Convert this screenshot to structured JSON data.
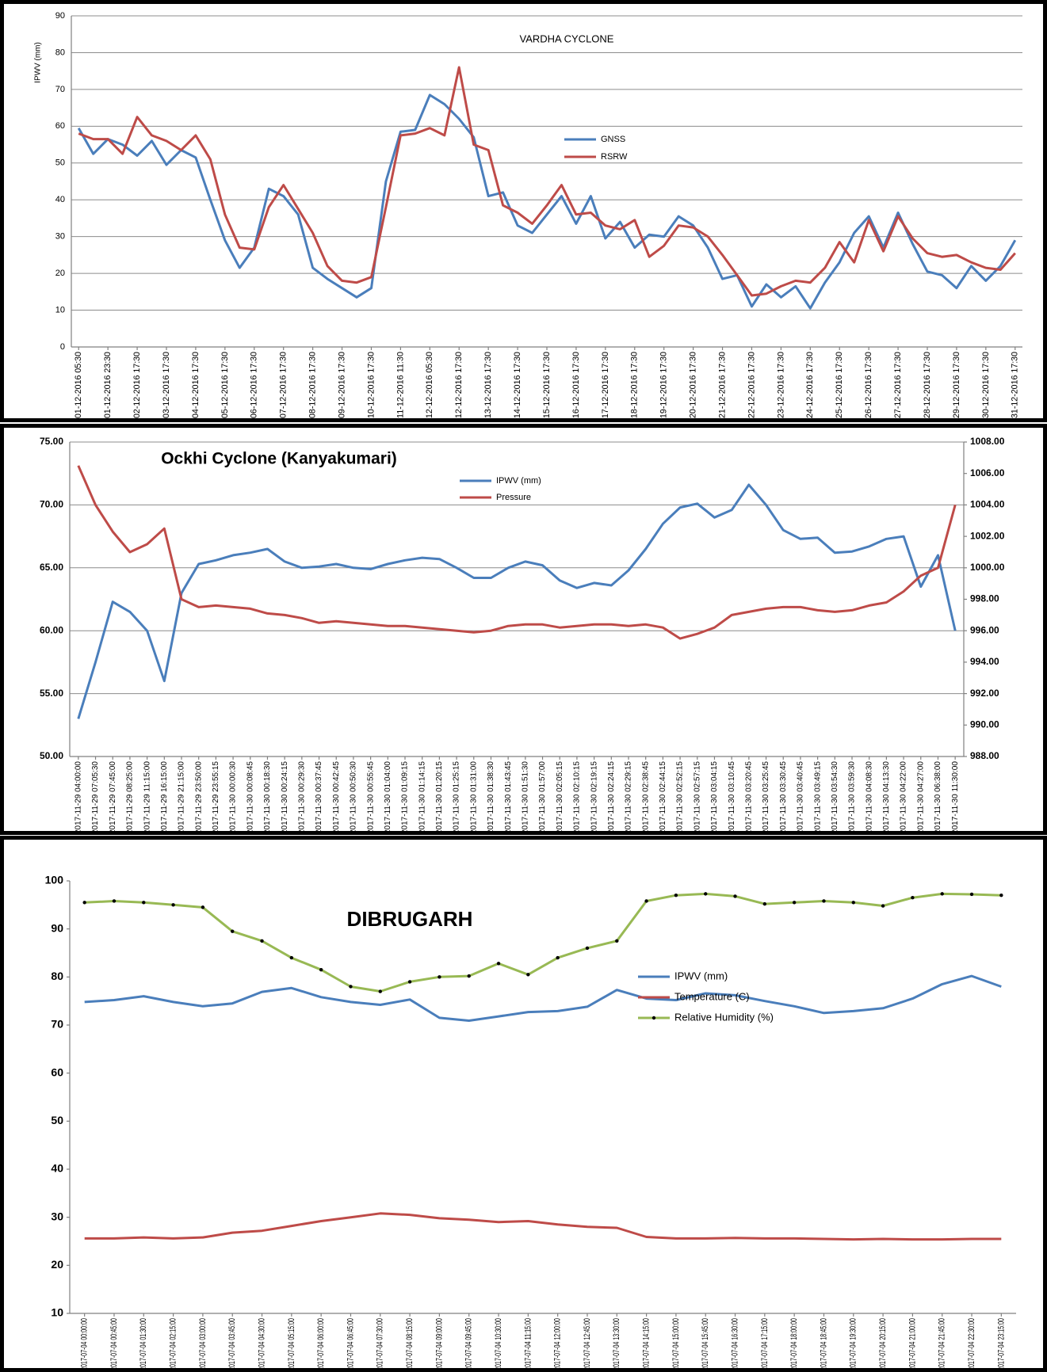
{
  "chart_data": [
    {
      "type": "line",
      "title": "VARDHA CYCLONE",
      "y_label": "IPWV (mm)",
      "categories": [
        "01-12-2016 05:30",
        null,
        "01-12-2016 23:30",
        null,
        "02-12-2016 17:30",
        null,
        "03-12-2016 17:30",
        null,
        "04-12-2016 17:30",
        null,
        "05-12-2016 17:30",
        null,
        "06-12-2016 17:30",
        null,
        "07-12-2016 17:30",
        null,
        "08-12-2016 17:30",
        null,
        "09-12-2016 17:30",
        null,
        "10-12-2016 17:30",
        null,
        "11-12-2016 11:30",
        null,
        "12-12-2016 05:30",
        null,
        "12-12-2016 17:30",
        null,
        "13-12-2016 17:30",
        null,
        "14-12-2016 17:30",
        null,
        "15-12-2016 17:30",
        null,
        "16-12-2016 17:30",
        null,
        "17-12-2016 17:30",
        null,
        "18-12-2016 17:30",
        null,
        "19-12-2016 17:30",
        null,
        "20-12-2016 17:30",
        null,
        "21-12-2016 17:30",
        null,
        "22-12-2016 17:30",
        null,
        "23-12-2016 17:30",
        null,
        "24-12-2016 17:30",
        null,
        "25-12-2016 17:30",
        null,
        "26-12-2016 17:30",
        null,
        "27-12-2016 17:30",
        null,
        "28-12-2016 17:30",
        null,
        "29-12-2016 17:30",
        null,
        "30-12-2016 17:30",
        null,
        "31-12-2016 17:30"
      ],
      "series": [
        {
          "name": "GNSS",
          "color": "#4a7ebb",
          "values": [
            59.5,
            52.5,
            56.5,
            55,
            52,
            56,
            49.5,
            53.5,
            51.5,
            40,
            29,
            21.5,
            27,
            43,
            41,
            36,
            21.5,
            18.5,
            16,
            13.5,
            16,
            45,
            58.5,
            59,
            68.5,
            66,
            62,
            57,
            41,
            42,
            33,
            31,
            36,
            41,
            33.5,
            41,
            29.5,
            34,
            27,
            30.5,
            30,
            35.5,
            33,
            27,
            18.5,
            19.5,
            11,
            17,
            13.5,
            16.5,
            10.5,
            17.5,
            23,
            31,
            35.5,
            27,
            36.5,
            28,
            20.5,
            19.5,
            16,
            22,
            18,
            22,
            29
          ]
        },
        {
          "name": "RSRW",
          "color": "#be4b48",
          "values": [
            58,
            56.5,
            56.5,
            52.5,
            62.5,
            57.5,
            56,
            53.5,
            57.5,
            51,
            36,
            27,
            26.5,
            38,
            44,
            37.5,
            31,
            22,
            18,
            17.5,
            19,
            38,
            57.5,
            58,
            59.5,
            57.5,
            76,
            55,
            53.5,
            38.5,
            36.5,
            33.5,
            38.5,
            44,
            36,
            36.5,
            33,
            32,
            34.5,
            24.5,
            27.5,
            33,
            32.5,
            30,
            25,
            19.5,
            14,
            14.5,
            16.5,
            18,
            17.5,
            21.5,
            28.5,
            23,
            34.5,
            26,
            35.5,
            29.5,
            25.5,
            24.5,
            25,
            23,
            21.5,
            21,
            25.5
          ]
        }
      ],
      "ylim": [
        0,
        90
      ],
      "yticks": [
        0,
        10,
        20,
        30,
        40,
        50,
        60,
        70,
        80,
        90
      ],
      "grid": true
    },
    {
      "type": "line",
      "title": "Ockhi Cyclone (Kanyakumari)",
      "categories": [
        "2017-11-29 04:00:00",
        "2017-11-29 07:05:30",
        "2017-11-29 07:45:00",
        "2017-11-29 08:25:00",
        "2017-11-29 11:15:00",
        "2017-11-29 16:15:00",
        "2017-11-29 21:15:00",
        "2017-11-29 23:50:00",
        "2017-11-29 23:55:15",
        "2017-11-30 00:00:30",
        "2017-11-30 00:08:45",
        "2017-11-30 00:18:30",
        "2017-11-30 00:24:15",
        "2017-11-30 00:29:30",
        "2017-11-30 00:37:45",
        "2017-11-30 00:42:45",
        "2017-11-30 00:50:30",
        "2017-11-30 00:55:45",
        "2017-11-30 01:04:00",
        "2017-11-30 01:09:15",
        "2017-11-30 01:14:15",
        "2017-11-30 01:20:15",
        "2017-11-30 01:25:15",
        "2017-11-30 01:31:00",
        "2017-11-30 01:38:30",
        "2017-11-30 01:43:45",
        "2017-11-30 01:51:30",
        "2017-11-30 01:57:00",
        "2017-11-30 02:05:15",
        "2017-11-30 02:10:15",
        "2017-11-30 02:19:15",
        "2017-11-30 02:24:15",
        "2017-11-30 02:29:15",
        "2017-11-30 02:38:45",
        "2017-11-30 02:44:15",
        "2017-11-30 02:52:15",
        "2017-11-30 02:57:15",
        "2017-11-30 03:04:15",
        "2017-11-30 03:10:45",
        "2017-11-30 03:20:45",
        "2017-11-30 03:25:45",
        "2017-11-30 03:30:45",
        "2017-11-30 03:40:45",
        "2017-11-30 03:49:15",
        "2017-11-30 03:54:30",
        "2017-11-30 03:59:30",
        "2017-11-30 04:08:30",
        "2017-11-30 04:13:30",
        "2017-11-30 04:22:00",
        "2017-11-30 04:27:00",
        "2017-11-30 06:38:00",
        "2017-11-30 11:30:00"
      ],
      "series": [
        {
          "name": "IPWV (mm)",
          "color": "#4a7ebb",
          "values": [
            53,
            57.5,
            62.3,
            61.5,
            60,
            56,
            63,
            65.3,
            65.6,
            66,
            66.2,
            66.5,
            65.5,
            65,
            65.1,
            65.3,
            65,
            64.9,
            65.3,
            65.6,
            65.8,
            65.7,
            65,
            64.2,
            64.2,
            65,
            65.5,
            65.2,
            64,
            63.4,
            63.8,
            63.6,
            64.8,
            66.5,
            68.5,
            69.8,
            70.1,
            69,
            69.6,
            71.6,
            70,
            68,
            67.3,
            67.4,
            66.2,
            66.3,
            66.7,
            67.3,
            67.5,
            63.5,
            66,
            60
          ]
        },
        {
          "name": "Pressure",
          "color": "#be4b48",
          "axis": "y2",
          "values": [
            1006.5,
            1004,
            1002.3,
            1001,
            1001.5,
            1002.5,
            998,
            997.5,
            997.6,
            997.5,
            997.4,
            997.1,
            997,
            996.8,
            996.5,
            996.6,
            996.5,
            996.4,
            996.3,
            996.3,
            996.2,
            996.1,
            996,
            995.9,
            996,
            996.3,
            996.4,
            996.4,
            996.2,
            996.3,
            996.4,
            996.4,
            996.3,
            996.4,
            996.2,
            995.5,
            995.8,
            996.2,
            997,
            997.2,
            997.4,
            997.5,
            997.5,
            997.3,
            997.2,
            997.3,
            997.6,
            997.8,
            998.5,
            999.5,
            1000,
            1004
          ]
        }
      ],
      "ylim": [
        50,
        75
      ],
      "yticks": [
        {
          "value": 50,
          "label": "50.00"
        },
        {
          "value": 55,
          "label": "55.00"
        },
        {
          "value": 60,
          "label": "60.00"
        },
        {
          "value": 65,
          "label": "65.00"
        },
        {
          "value": 70,
          "label": "70.00"
        },
        {
          "value": 75,
          "label": "75.00"
        }
      ],
      "y2lim": [
        988,
        1008
      ],
      "y2ticks": [
        {
          "value": 988,
          "label": "988.00"
        },
        {
          "value": 990,
          "label": "990.00"
        },
        {
          "value": 992,
          "label": "992.00"
        },
        {
          "value": 994,
          "label": "994.00"
        },
        {
          "value": 996,
          "label": "996.00"
        },
        {
          "value": 998,
          "label": "998.00"
        },
        {
          "value": 1000,
          "label": "1000.00"
        },
        {
          "value": 1002,
          "label": "1002.00"
        },
        {
          "value": 1004,
          "label": "1004.00"
        },
        {
          "value": 1006,
          "label": "1006.00"
        },
        {
          "value": 1008,
          "label": "1008.00"
        }
      ],
      "grid": true
    },
    {
      "type": "line",
      "title": "DIBRUGARH",
      "categories": [
        "2017-07-04 00:00:00",
        "2017-07-04 00:45:00",
        "2017-07-04 01:30:00",
        "2017-07-04 02:15:00",
        "2017-07-04 03:00:00",
        "2017-07-04 03:45:00",
        "2017-07-04 04:30:00",
        "2017-07-04 05:15:00",
        "2017-07-04 06:00:00",
        "2017-07-04 06:45:00",
        "2017-07-04 07:30:00",
        "2017-07-04 08:15:00",
        "2017-07-04 09:00:00",
        "2017-07-04 09:45:00",
        "2017-07-04 10:30:00",
        "2017-07-04 11:15:00",
        "2017-07-04 12:00:00",
        "2017-07-04 12:45:00",
        "2017-07-04 13:30:00",
        "2017-07-04 14:15:00",
        "2017-07-04 15:00:00",
        "2017-07-04 15:45:00",
        "2017-07-04 16:30:00",
        "2017-07-04 17:15:00",
        "2017-07-04 18:00:00",
        "2017-07-04 18:45:00",
        "2017-07-04 19:30:00",
        "2017-07-04 20:15:00",
        "2017-07-04 21:00:00",
        "2017-07-04 21:45:00",
        "2017-07-04 22:30:00",
        "2017-07-04 23:15:00"
      ],
      "series": [
        {
          "name": "IPWV (mm)",
          "color": "#4a7ebb",
          "values": [
            74.8,
            75.2,
            76,
            74.8,
            73.9,
            74.5,
            76.9,
            77.7,
            75.8,
            74.8,
            74.2,
            75.3,
            71.5,
            70.9,
            71.8,
            72.7,
            72.9,
            73.8,
            77.3,
            75.5,
            75.2,
            76.6,
            76.2,
            75,
            73.9,
            72.5,
            72.9,
            73.5,
            75.5,
            78.5,
            80.2,
            78
          ]
        },
        {
          "name": "Temperature (C)",
          "color": "#be4b48",
          "values": [
            25.6,
            25.6,
            25.8,
            25.6,
            25.8,
            26.8,
            27.2,
            28.2,
            29.2,
            30,
            30.8,
            30.5,
            29.8,
            29.5,
            29,
            29.2,
            28.5,
            28,
            27.8,
            25.9,
            25.6,
            25.6,
            25.7,
            25.6,
            25.6,
            25.5,
            25.4,
            25.5,
            25.4,
            25.4,
            25.5,
            25.5
          ]
        },
        {
          "name": "Relative Humidity (%)",
          "color": "#98b954",
          "markers": true,
          "values": [
            95.5,
            95.8,
            95.5,
            95,
            94.5,
            89.5,
            87.5,
            84,
            81.5,
            78,
            77,
            79,
            80,
            80.2,
            82.8,
            80.5,
            84,
            86,
            87.5,
            95.8,
            97,
            97.3,
            96.8,
            95.2,
            95.5,
            95.8,
            95.5,
            94.8,
            96.5,
            97.3,
            97.2,
            97
          ]
        }
      ],
      "ylim": [
        10,
        100
      ],
      "yticks": [
        10,
        20,
        30,
        40,
        50,
        60,
        70,
        80,
        90,
        100
      ],
      "grid": false
    }
  ]
}
